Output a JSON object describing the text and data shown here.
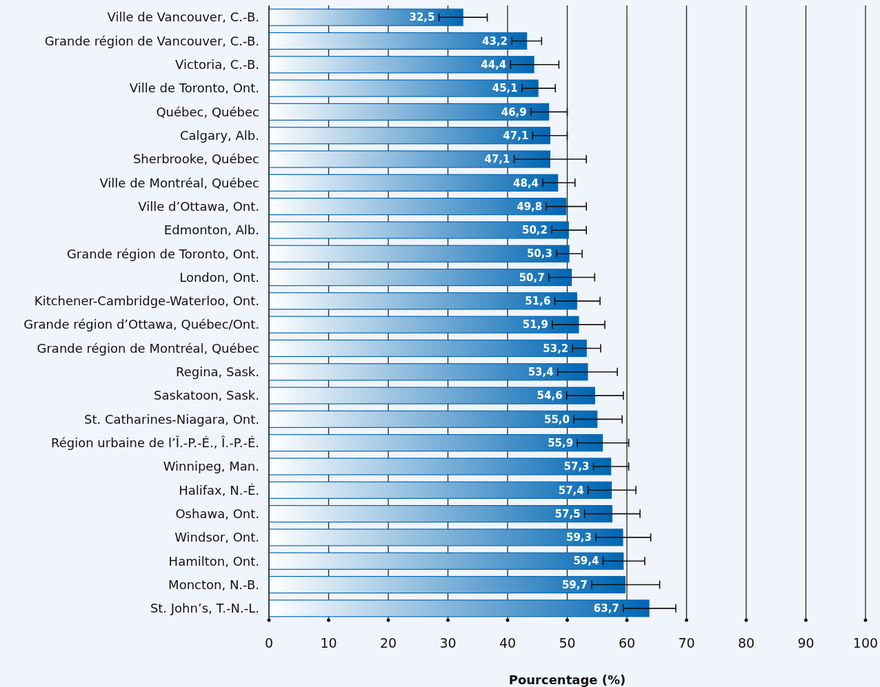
{
  "chart_data": {
    "type": "bar",
    "orientation": "horizontal",
    "xlabel": "Pourcentage (%)",
    "categories": [
      "Ville de Vancouver, C.-B.",
      "Grande région de Vancouver, C.-B.",
      "Victoria, C.-B.",
      "Ville de Toronto, Ont.",
      "Québec, Québec",
      "Calgary, Alb.",
      "Sherbrooke, Québec",
      "Ville de Montréal, Québec",
      "Ville d’Ottawa, Ont.",
      "Edmonton, Alb.",
      "Grande région de Toronto, Ont.",
      "London, Ont.",
      "Kitchener-Cambridge-Waterloo, Ont.",
      "Grande région d’Ottawa, Québec/Ont.",
      "Grande région de Montréal, Québec",
      "Regina, Sask.",
      "Saskatoon, Sask.",
      "St. Catharines-Niagara, Ont.",
      "Région urbaine de l’Î.-P.-É., Î.-P.-É.",
      "Winnipeg, Man.",
      "Halifax, N.-É.",
      "Oshawa, Ont.",
      "Windsor, Ont.",
      "Hamilton, Ont.",
      "Moncton, N.-B.",
      "St. John’s, T.-N.-L."
    ],
    "values": [
      32.5,
      43.2,
      44.4,
      45.1,
      46.9,
      47.1,
      47.1,
      48.4,
      49.8,
      50.2,
      50.3,
      50.7,
      51.6,
      51.9,
      53.2,
      53.4,
      54.6,
      55.0,
      55.9,
      57.3,
      57.4,
      57.5,
      59.3,
      59.4,
      59.7,
      63.7
    ],
    "value_labels": [
      "32,5",
      "43,2",
      "44,4",
      "45,1",
      "46,9",
      "47,1",
      "47,1",
      "48,4",
      "49,8",
      "50,2",
      "50,3",
      "50,7",
      "51,6",
      "51,9",
      "53,2",
      "53,4",
      "54,6",
      "55,0",
      "55,9",
      "57,3",
      "57,4",
      "57,5",
      "59,3",
      "59,4",
      "59,7",
      "63,7"
    ],
    "errors": [
      [
        28.5,
        36.6
      ],
      [
        40.7,
        45.7
      ],
      [
        40.5,
        48.6
      ],
      [
        42.4,
        48.0
      ],
      [
        43.9,
        50.0
      ],
      [
        44.2,
        50.0
      ],
      [
        41.1,
        53.2
      ],
      [
        45.9,
        51.3
      ],
      [
        46.5,
        53.2
      ],
      [
        47.4,
        53.2
      ],
      [
        48.2,
        52.5
      ],
      [
        46.9,
        54.6
      ],
      [
        47.9,
        55.5
      ],
      [
        47.5,
        56.3
      ],
      [
        50.9,
        55.6
      ],
      [
        48.4,
        58.4
      ],
      [
        49.9,
        59.4
      ],
      [
        51.1,
        59.2
      ],
      [
        51.7,
        60.3
      ],
      [
        54.4,
        60.3
      ],
      [
        53.5,
        61.5
      ],
      [
        52.9,
        62.2
      ],
      [
        54.8,
        64.0
      ],
      [
        56.0,
        63.0
      ],
      [
        54.1,
        65.5
      ],
      [
        59.4,
        68.2
      ]
    ],
    "color": "#0066b3",
    "xlim": [
      0,
      100
    ],
    "xticks": [
      0,
      10,
      20,
      30,
      40,
      50,
      60,
      70,
      80,
      90,
      100
    ],
    "grid": "x"
  }
}
